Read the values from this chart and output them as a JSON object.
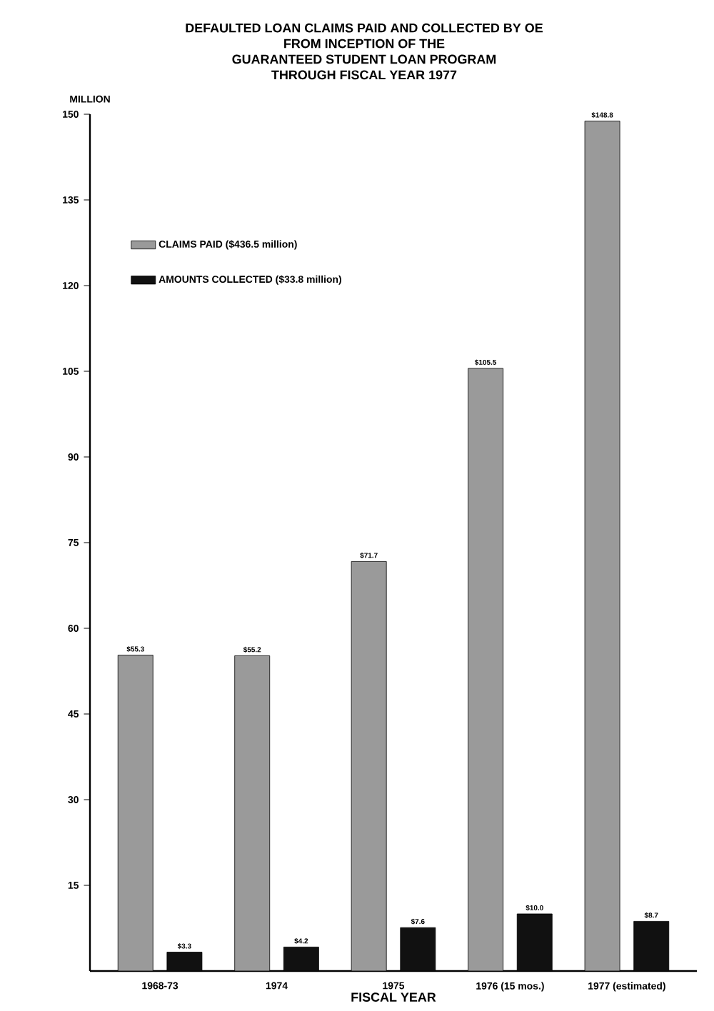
{
  "chart_data": {
    "type": "bar",
    "title": "DEFAULTED LOAN CLAIMS PAID AND COLLECTED BY OE\nFROM INCEPTION OF THE\nGUARANTEED STUDENT LOAN PROGRAM\nTHROUGH FISCAL YEAR 1977",
    "ylabel": "MILLION",
    "xlabel": "FISCAL YEAR",
    "categories": [
      "1968-73",
      "1974",
      "1975",
      "1976 (15 mos.)",
      "1977 (estimated)"
    ],
    "series": [
      {
        "name": "CLAIMS PAID      ($436.5 million)",
        "color": "#9a9a9a",
        "values": [
          55.3,
          55.2,
          71.7,
          105.5,
          148.8
        ],
        "value_labels": [
          "$55.3",
          "$55.2",
          "$71.7",
          "$105.5",
          "$148.8"
        ]
      },
      {
        "name": "AMOUNTS COLLECTED      ($33.8 million)",
        "color": "#111111",
        "values": [
          3.3,
          4.2,
          7.6,
          10.0,
          8.7
        ],
        "value_labels": [
          "$3.3",
          "$4.2",
          "$7.6",
          "$10.0",
          "$8.7"
        ]
      }
    ],
    "ylim": [
      0,
      150
    ],
    "yticks": [
      15,
      30,
      45,
      60,
      75,
      90,
      105,
      120,
      135,
      150
    ],
    "legend": "top left"
  }
}
